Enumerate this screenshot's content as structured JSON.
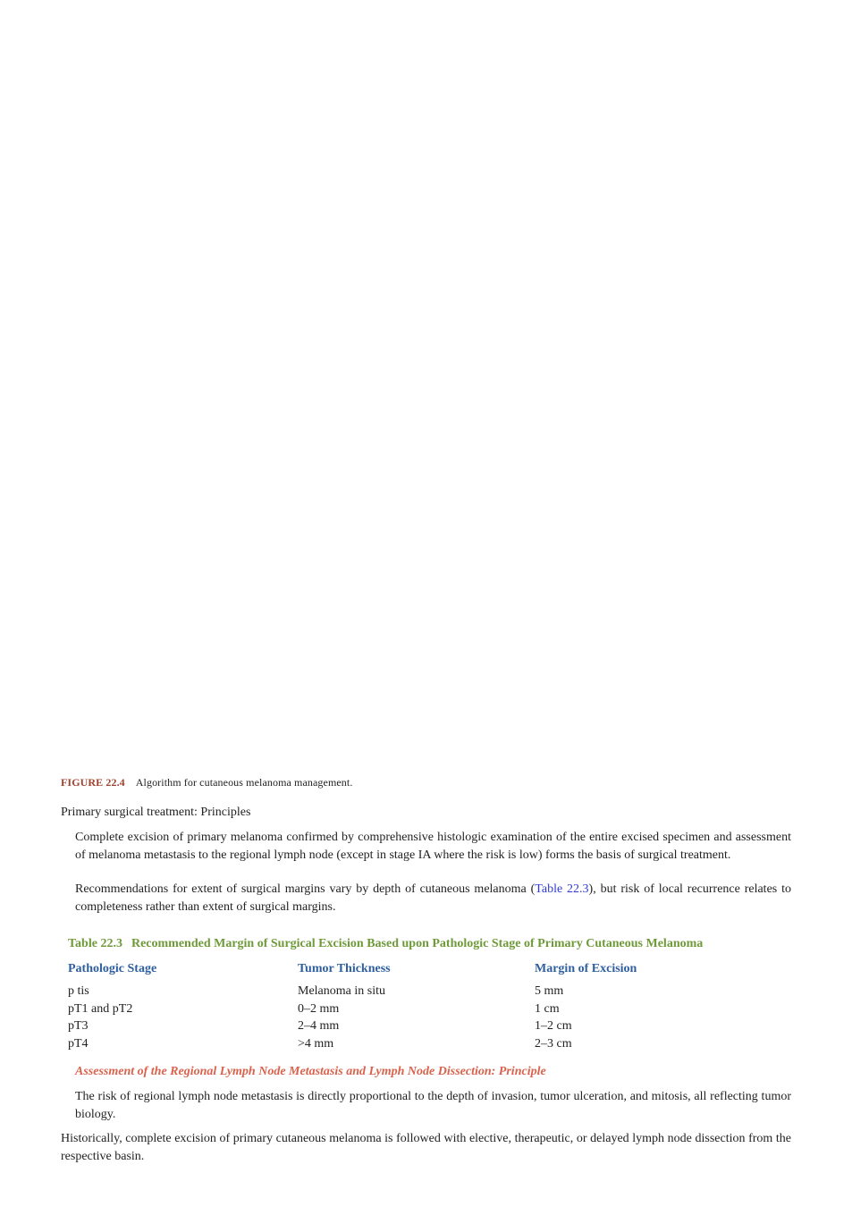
{
  "figure_caption": {
    "label": "FIGURE 22.4",
    "text": "Algorithm for cutaneous melanoma management."
  },
  "section": {
    "heading": "Primary surgical treatment: Principles",
    "p1": "Complete excision of primary melanoma confirmed by comprehensive histologic examination of the entire excised specimen and assessment of melanoma metastasis to the regional lymph node (except in stage IA where the risk is low) forms the basis of surgical treatment.",
    "p2_before": "Recommendations for extent of surgical margins vary by depth of cutaneous melanoma (",
    "p2_link": "Table 22.3",
    "p2_after": "), but risk of local recurrence relates to completeness rather than extent of surgical margins."
  },
  "table": {
    "number": "Table 22.3",
    "title": "Recommended Margin of Surgical Excision Based upon Pathologic Stage of Primary Cutaneous Melanoma",
    "headers": [
      "Pathologic Stage",
      "Tumor Thickness",
      "Margin of Excision"
    ],
    "rows": [
      [
        "p tis",
        "Melanoma in situ",
        "5 mm"
      ],
      [
        "pT1 and pT2",
        "0–2 mm",
        "1 cm"
      ],
      [
        "pT3",
        "2–4 mm",
        "1–2 cm"
      ],
      [
        "pT4",
        ">4 mm",
        "2–3 cm"
      ]
    ]
  },
  "lymph": {
    "heading": "Assessment of the Regional Lymph Node Metastasis and Lymph Node Dissection: Principle",
    "p1": "The risk of regional lymph node metastasis is directly proportional to the depth of invasion, tumor ulceration, and mitosis, all reflecting tumor biology.",
    "p2": "Historically, complete excision of primary cutaneous melanoma is followed with elective, therapeutic, or delayed lymph node dissection from the respective basin."
  },
  "colors": {
    "figure_label": "#a0412d",
    "table_title": "#6f9a3a",
    "table_header": "#2f5f9f",
    "subheading": "#d9624c",
    "link": "#2f3bd6"
  }
}
